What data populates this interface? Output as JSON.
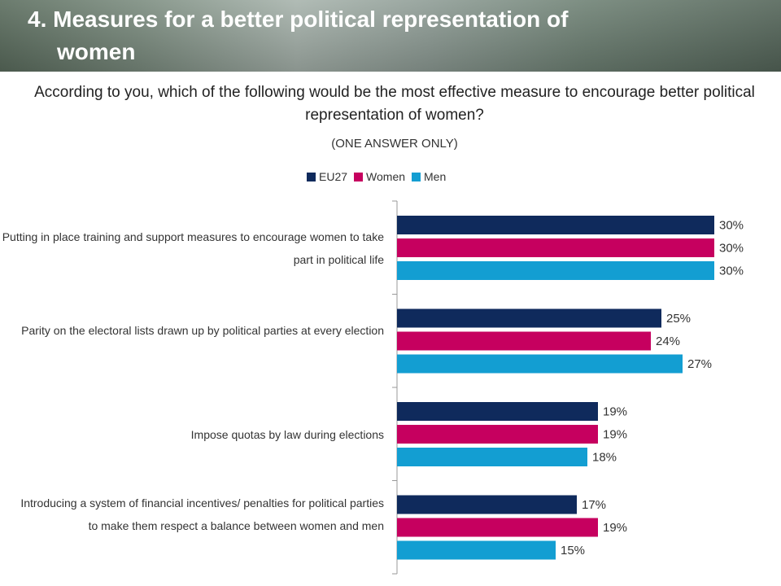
{
  "slide": {
    "title_line1": "4. Measures for a better political representation of",
    "title_line2": "women",
    "question": "According to you, which of the following would be the most effective measure to encourage better political representation of women?",
    "note": "(ONE ANSWER ONLY)"
  },
  "colors": {
    "EU27": "#0f2a5c",
    "Women": "#c6005f",
    "Men": "#139ed2"
  },
  "chart_data": {
    "type": "bar",
    "orientation": "horizontal",
    "categories": [
      "Putting in place training and support measures to encourage women to take part in political life",
      "Parity on the electoral lists drawn up by political parties at every election",
      "Impose quotas by law during elections",
      "Introducing a system of financial incentives/ penalties for political parties to make them respect a balance between women and men"
    ],
    "series": [
      {
        "name": "EU27",
        "values": [
          30,
          25,
          19,
          17
        ],
        "labels": [
          "30%",
          "25%",
          "19%",
          "17%"
        ]
      },
      {
        "name": "Women",
        "values": [
          30,
          24,
          19,
          19
        ],
        "labels": [
          "30%",
          "24%",
          "19%",
          "19%"
        ]
      },
      {
        "name": "Men",
        "values": [
          30,
          27,
          18,
          15
        ],
        "labels": [
          "30%",
          "27%",
          "18%",
          "15%"
        ]
      }
    ],
    "unit": "%",
    "xlim": [
      0,
      30
    ],
    "legend_position": "top",
    "grid": false
  }
}
